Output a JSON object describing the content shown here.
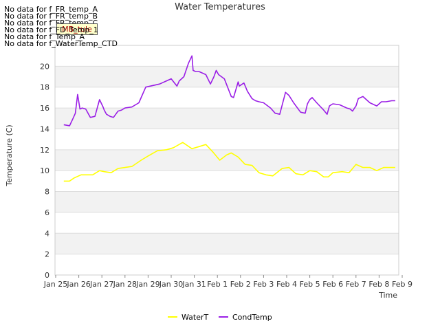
{
  "chart_data": {
    "type": "line",
    "title": "Water Temperatures",
    "xlabel": "Time",
    "ylabel": "Temperature (C)",
    "ylim": [
      0,
      22
    ],
    "yticks": [
      0,
      2,
      4,
      6,
      8,
      10,
      12,
      14,
      16,
      18,
      20
    ],
    "xlim": [
      0,
      15
    ],
    "xticks": [
      "Jan 25",
      "Jan 26",
      "Jan 27",
      "Jan 28",
      "Jan 29",
      "Jan 30",
      "Jan 31",
      "Feb 1",
      "Feb 2",
      "Feb 3",
      "Feb 4",
      "Feb 5",
      "Feb 6",
      "Feb 7",
      "Feb 8",
      "Feb 9"
    ],
    "legend_position": "bottom-center",
    "series": [
      {
        "name": "WaterT",
        "color": "#ffff00",
        "x": [
          0.35,
          0.6,
          0.8,
          1.1,
          1.3,
          1.6,
          1.9,
          2.1,
          2.4,
          2.7,
          3.0,
          3.3,
          3.7,
          4.0,
          4.4,
          4.8,
          5.1,
          5.5,
          5.9,
          6.2,
          6.5,
          6.8,
          7.1,
          7.4,
          7.6,
          7.9,
          8.2,
          8.5,
          8.8,
          9.1,
          9.4,
          9.8,
          10.1,
          10.4,
          10.7,
          11.0,
          11.3,
          11.6,
          11.8,
          12.0,
          12.4,
          12.7,
          13.0,
          13.3,
          13.6,
          13.9,
          14.2,
          14.5,
          14.7
        ],
        "values": [
          9.0,
          9.0,
          9.3,
          9.6,
          9.6,
          9.6,
          10.0,
          9.9,
          9.8,
          10.2,
          10.3,
          10.4,
          11.0,
          11.4,
          11.9,
          12.0,
          12.2,
          12.7,
          12.1,
          12.3,
          12.5,
          11.8,
          11.0,
          11.5,
          11.7,
          11.3,
          10.6,
          10.5,
          9.8,
          9.6,
          9.5,
          10.2,
          10.3,
          9.7,
          9.6,
          10.0,
          9.9,
          9.4,
          9.4,
          9.8,
          9.9,
          9.8,
          10.6,
          10.3,
          10.3,
          10.0,
          10.3,
          10.3,
          10.3
        ]
      },
      {
        "name": "CondTemp",
        "color": "#9a1ee6",
        "x": [
          0.35,
          0.6,
          0.75,
          0.85,
          0.95,
          1.05,
          1.15,
          1.3,
          1.5,
          1.7,
          1.9,
          2.05,
          2.1,
          2.2,
          2.35,
          2.5,
          2.7,
          2.85,
          3.0,
          3.3,
          3.6,
          3.9,
          4.1,
          4.3,
          4.5,
          4.8,
          5.0,
          5.25,
          5.35,
          5.55,
          5.75,
          5.9,
          5.95,
          6.05,
          6.2,
          6.5,
          6.7,
          6.85,
          6.95,
          7.05,
          7.3,
          7.6,
          7.7,
          7.9,
          7.95,
          8.15,
          8.3,
          8.5,
          8.65,
          8.8,
          9.0,
          9.3,
          9.5,
          9.7,
          9.95,
          10.1,
          10.3,
          10.6,
          10.8,
          10.9,
          11.0,
          11.1,
          11.3,
          11.6,
          11.75,
          11.85,
          12.0,
          12.3,
          12.6,
          12.75,
          12.85,
          13.0,
          13.1,
          13.3,
          13.6,
          13.9,
          14.1,
          14.3,
          14.55,
          14.7
        ],
        "values": [
          14.4,
          14.3,
          15.0,
          15.5,
          17.3,
          15.9,
          16.0,
          15.9,
          15.1,
          15.2,
          16.8,
          16.1,
          15.8,
          15.4,
          15.2,
          15.1,
          15.7,
          15.8,
          16.0,
          16.1,
          16.5,
          18.0,
          18.1,
          18.2,
          18.3,
          18.6,
          18.8,
          18.1,
          18.6,
          19.0,
          20.3,
          21.0,
          19.6,
          19.5,
          19.5,
          19.2,
          18.3,
          19.0,
          19.6,
          19.2,
          18.8,
          17.1,
          17.0,
          18.5,
          18.1,
          18.4,
          17.6,
          16.9,
          16.7,
          16.6,
          16.5,
          16.0,
          15.5,
          15.4,
          17.5,
          17.2,
          16.5,
          15.6,
          15.5,
          16.4,
          16.8,
          17.0,
          16.5,
          15.8,
          15.4,
          16.2,
          16.4,
          16.3,
          16.0,
          15.9,
          15.7,
          16.2,
          16.9,
          17.1,
          16.5,
          16.2,
          16.6,
          16.6,
          16.7,
          16.7
        ]
      }
    ]
  },
  "no_data_messages": [
    "No data for f_FR_temp_A",
    "No data for f_FR_temp_B",
    "No data for f_FR_temp_C",
    "No data for f_FD_Temp_1",
    "No data for f_Temp_A",
    "No data for f_WaterTemp_CTD"
  ],
  "mb_tag": "MB_tule"
}
